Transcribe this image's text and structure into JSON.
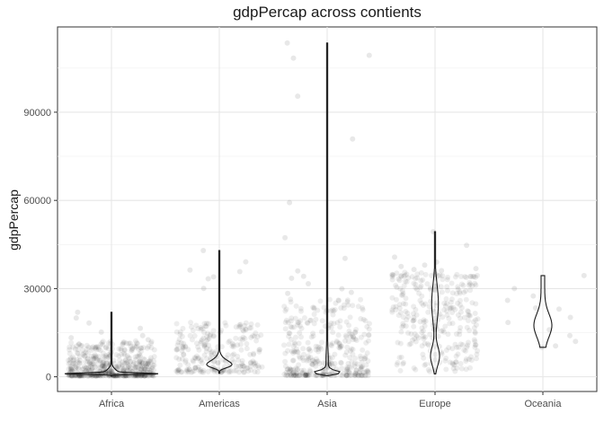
{
  "chart_data": {
    "type": "violin",
    "title": "gdpPercap across contients",
    "xlabel": "",
    "ylabel": "gdpPercap",
    "categories": [
      "Africa",
      "Americas",
      "Asia",
      "Europe",
      "Oceania"
    ],
    "ylim": [
      -5000,
      119000
    ],
    "yticks": [
      0,
      30000,
      60000,
      90000
    ],
    "ytick_labels": [
      "0",
      "30000",
      "60000",
      "90000"
    ],
    "grid": true,
    "legend": "none",
    "violin": {
      "Africa": {
        "min": 241,
        "max": 21951,
        "peak": 1000
      },
      "Americas": {
        "min": 1202,
        "max": 42952,
        "peak": 4500
      },
      "Asia": {
        "min": 331,
        "max": 113523,
        "peak": 1500
      },
      "Europe": {
        "min": 974,
        "max": 49357,
        "peak": 8000
      },
      "Oceania": {
        "min": 10040,
        "max": 34435,
        "peak": 18000
      }
    },
    "outliers": {
      "Asia": [
        113523,
        109348,
        108382,
        95458,
        80894,
        59265,
        47307,
        40300,
        36023,
        34167,
        33519,
        31657,
        29926,
        28718,
        28377
      ],
      "Americas": [
        42952,
        39097,
        36319,
        35767,
        33965,
        33328,
        30036
      ],
      "Africa": [
        21951,
        20000,
        18300,
        16500,
        15200,
        14000,
        13300,
        12600
      ],
      "Europe": [
        49357,
        44684,
        40676,
        39000,
        38000,
        37500,
        36800,
        36500,
        36100
      ],
      "Oceania": [
        34435,
        30000,
        27500,
        26000,
        23400,
        23000,
        20200,
        18500,
        16000,
        14000,
        12000,
        10500,
        10000
      ]
    }
  }
}
